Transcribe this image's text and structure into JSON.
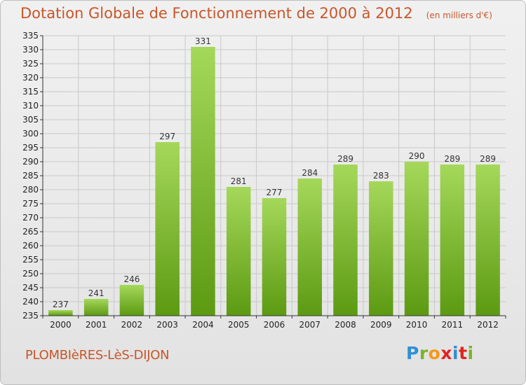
{
  "header": {
    "title": "Dotation Globale de Fonctionnement de 2000 à 2012",
    "subtitle": "(en milliers d'€)"
  },
  "footer": {
    "commune": "PLOMBIèRES-LèS-DIJON",
    "logo": {
      "text": "Proxiti",
      "letter_colors": [
        "#2f8fd8",
        "#7ab42b",
        "#f29a1b",
        "#e3231f",
        "#2f8fd8",
        "#e3231f",
        "#7ab42b"
      ]
    }
  },
  "colors": {
    "title": "#c9562a",
    "bar_top": "#a5d85a",
    "bar_bottom": "#5c9a12",
    "grid": "#c9c9c9",
    "axis": "#333333"
  },
  "chart_data": {
    "type": "bar",
    "title": "Dotation Globale de Fonctionnement de 2000 à 2012",
    "subtitle": "(en milliers d'€)",
    "categories": [
      "2000",
      "2001",
      "2002",
      "2003",
      "2004",
      "2005",
      "2006",
      "2007",
      "2008",
      "2009",
      "2010",
      "2011",
      "2012"
    ],
    "values": [
      237,
      241,
      246,
      297,
      331,
      281,
      277,
      284,
      289,
      283,
      290,
      289,
      289
    ],
    "data_labels": [
      "237",
      "241",
      "246",
      "297",
      "331",
      "281",
      "277",
      "284",
      "289",
      "283",
      "290",
      "289",
      "289"
    ],
    "ylim": [
      235,
      335
    ],
    "yticks": [
      235,
      240,
      245,
      250,
      255,
      260,
      265,
      270,
      275,
      280,
      285,
      290,
      295,
      300,
      305,
      310,
      315,
      320,
      325,
      330,
      335
    ],
    "grid": true,
    "legend": "none"
  }
}
